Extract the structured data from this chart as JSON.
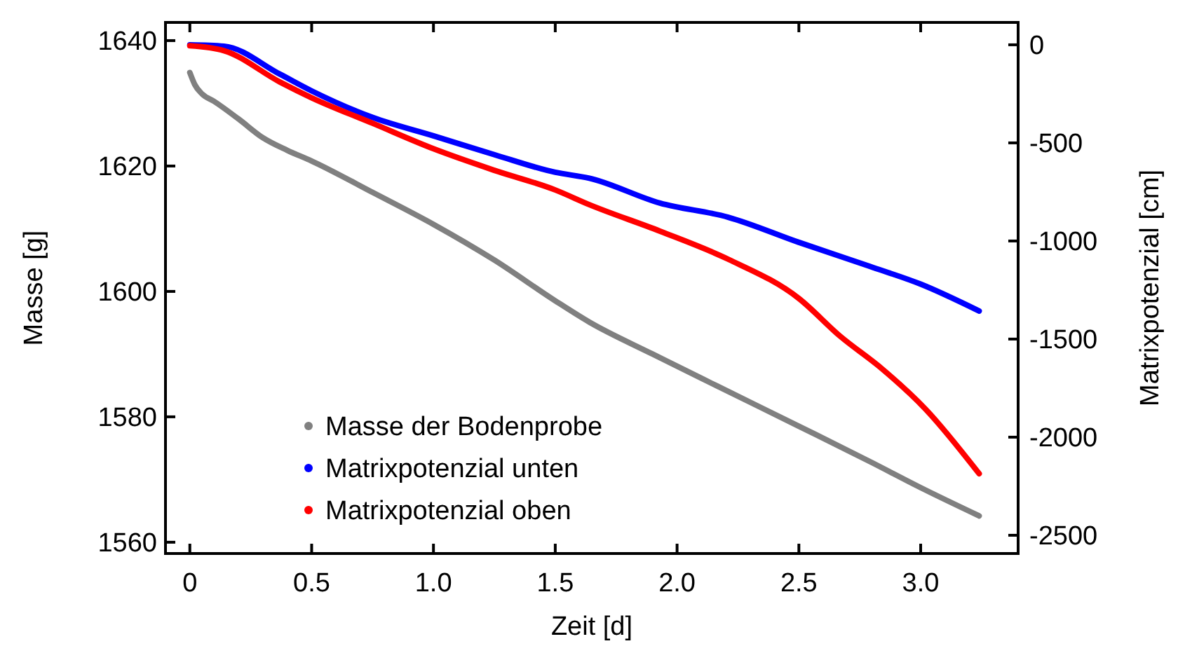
{
  "chart_data": {
    "type": "line",
    "xlabel": "Zeit [d]",
    "ylabel": "Masse [g]",
    "y2label": "Matrixpotenzial [cm]",
    "xlim": [
      -0.1,
      3.4
    ],
    "xticks": [
      0,
      0.5,
      {
        "value": 1,
        "label": "1.0"
      },
      1.5,
      {
        "value": 2,
        "label": "2.0"
      },
      2.5,
      {
        "value": 3,
        "label": "3.0"
      }
    ],
    "ylim": [
      1558.2,
      1642.9
    ],
    "yticks": [
      1560,
      1580,
      1600,
      1620,
      1640
    ],
    "y2lim": [
      -2593,
      114
    ],
    "y2ticks": [
      -2500,
      -2000,
      -1500,
      -1000,
      -500,
      0
    ],
    "legend": "bottom left",
    "grid": false,
    "marker": "none",
    "line_style": "solid",
    "series": [
      {
        "name": "Masse der Bodenprobe",
        "color": "#808080",
        "x": [
          0,
          0.02,
          0.05,
          0.1,
          0.2,
          0.3,
          0.4,
          0.5,
          0.75,
          1.0,
          1.25,
          1.5,
          1.64,
          1.9,
          2.16,
          2.5,
          2.8,
          3.0,
          3.24
        ],
        "values": [
          1634.9,
          1633,
          1631.5,
          1630.3,
          1627.5,
          1624.5,
          1622.5,
          1620.8,
          1615.8,
          1610.7,
          1605,
          1598.5,
          1595.1,
          1590,
          1585,
          1578.5,
          1572.7,
          1568.7,
          1564.2
        ]
      },
      {
        "name": "Matrixpotenzial unten",
        "color": "#0000ff",
        "axis": "y2",
        "x": [
          0,
          0.14,
          0.37,
          0.5,
          0.75,
          1.0,
          1.25,
          1.5,
          1.64,
          1.93,
          2.21,
          2.5,
          2.79,
          3.0,
          3.24
        ],
        "values": [
          0,
          -7,
          -150,
          -235,
          -370,
          -464,
          -560,
          -650,
          -680,
          -807,
          -879,
          -1007,
          -1129,
          -1220,
          -1357
        ]
      },
      {
        "name": "Matrixpotenzial oben",
        "color": "#ff0000",
        "axis": "y2",
        "x": [
          0,
          0.14,
          0.37,
          0.5,
          0.75,
          1.0,
          1.25,
          1.5,
          1.64,
          1.93,
          2.21,
          2.5,
          2.67,
          2.84,
          3.02,
          3.24
        ],
        "values": [
          -5,
          -30,
          -190,
          -270,
          -400,
          -530,
          -640,
          -740,
          -815,
          -950,
          -1093,
          -1293,
          -1486,
          -1650,
          -1857,
          -2186
        ]
      }
    ]
  }
}
